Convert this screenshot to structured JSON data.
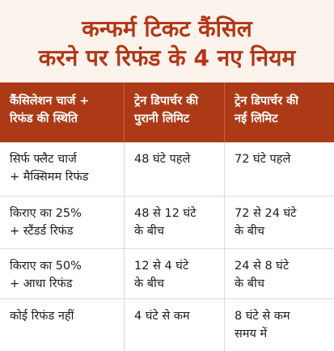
{
  "title": {
    "line1": "कन्फर्म टिकट कैंसिल",
    "line2": "करने पर रिफंड के 4 नए नियम"
  },
  "colors": {
    "title": "#b23616",
    "title_bg": "#fbf3ec",
    "header_bg": "#ac3a17",
    "header_text": "#ffffff"
  },
  "table": {
    "headers": [
      [
        "कैंसिलेशन चार्ज +",
        "रिफंड की स्थिति"
      ],
      [
        "ट्रेन डिपार्चर की",
        "पुरानी लिमिट"
      ],
      [
        "ट्रेन डिपार्चर की",
        "नई लिमिट"
      ]
    ],
    "rows": [
      [
        [
          "सिर्फ फ्लैट चार्ज",
          "+ मैक्सिमम रिफंड"
        ],
        [
          "48 घंटे पहले"
        ],
        [
          "72 घंटे पहले"
        ]
      ],
      [
        [
          "किराए का 25%",
          "+ स्टैंडर्ड रिफंड"
        ],
        [
          "48 से 12 घंटे",
          "के बीच"
        ],
        [
          "72 से 24 घंटे",
          "के बीच"
        ]
      ],
      [
        [
          "किराए का 50%",
          "+ आधा रिफंड"
        ],
        [
          "12 से 4 घंटे",
          "के बीच"
        ],
        [
          "24 से 8 घंटे",
          "के बीच"
        ]
      ],
      [
        [
          "कोई रिफंड नहीं"
        ],
        [
          "4 घंटे से कम"
        ],
        [
          "8 घंटे से कम",
          "समय में"
        ]
      ]
    ]
  }
}
